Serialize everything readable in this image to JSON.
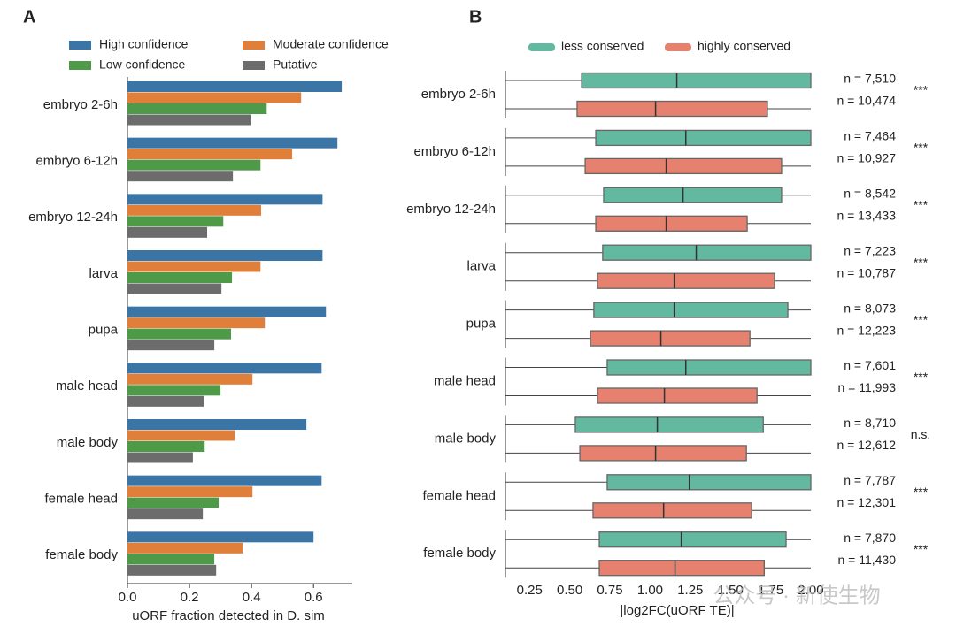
{
  "chart_data": [
    {
      "type": "bar",
      "title": "A",
      "categories": [
        "embryo 2-6h",
        "embryo 6-12h",
        "embryo 12-24h",
        "larva",
        "pupa",
        "male head",
        "male body",
        "female head",
        "female body"
      ],
      "series": [
        {
          "name": "High confidence",
          "color": "#3a75a6",
          "values": [
            0.691,
            0.677,
            0.629,
            0.629,
            0.64,
            0.626,
            0.577,
            0.626,
            0.6
          ]
        },
        {
          "name": "Moderate confidence",
          "color": "#e07f3a",
          "values": [
            0.56,
            0.531,
            0.431,
            0.429,
            0.443,
            0.403,
            0.346,
            0.403,
            0.371
          ]
        },
        {
          "name": "Low confidence",
          "color": "#4f9a48",
          "values": [
            0.449,
            0.429,
            0.309,
            0.337,
            0.334,
            0.3,
            0.249,
            0.294,
            0.28
          ]
        },
        {
          "name": "Putative",
          "color": "#6c6c6c",
          "values": [
            0.397,
            0.34,
            0.257,
            0.303,
            0.28,
            0.246,
            0.211,
            0.243,
            0.286
          ]
        }
      ],
      "xlabel": "uORF fraction detected in D. sim",
      "xlim": [
        0,
        0.725
      ],
      "xticks": [
        {
          "value": 0,
          "label": "0.0"
        },
        0.2,
        0.4,
        0.6
      ]
    },
    {
      "type": "box",
      "title": "B",
      "categories": [
        "embryo 2-6h",
        "embryo 6-12h",
        "embryo 12-24h",
        "larva",
        "pupa",
        "male head",
        "male body",
        "female head",
        "female body"
      ],
      "series": [
        {
          "name": "less conserved",
          "color": "#63b8a0",
          "whisker_low": [
            0.1,
            0.1,
            0.1,
            0.1,
            0.1,
            0.1,
            0.1,
            0.1,
            0.1
          ],
          "q1": [
            0.574,
            0.662,
            0.711,
            0.705,
            0.65,
            0.733,
            0.535,
            0.733,
            0.684
          ],
          "median": [
            1.166,
            1.222,
            1.205,
            1.287,
            1.15,
            1.222,
            1.045,
            1.244,
            1.194
          ],
          "q3": [
            2.0,
            2.0,
            1.818,
            2.0,
            1.857,
            2.0,
            1.704,
            2.0,
            1.846
          ],
          "whisker_high": [
            2.0,
            2.0,
            2.0,
            2.0,
            2.0,
            2.0,
            2.0,
            2.0,
            2.0
          ],
          "n": [
            {
              "value": 7510,
              "label": "n = 7,510"
            },
            {
              "value": 7464,
              "label": "n = 7,464"
            },
            {
              "value": 8542,
              "label": "n = 8,542"
            },
            {
              "value": 7223,
              "label": "n = 7,223"
            },
            {
              "value": 8073,
              "label": "n = 8,073"
            },
            {
              "value": 7601,
              "label": "n = 7,601"
            },
            {
              "value": 8710,
              "label": "n = 8,710"
            },
            {
              "value": 7787,
              "label": "n = 7,787"
            },
            {
              "value": 7870,
              "label": "n = 7,870"
            }
          ]
        },
        {
          "name": "highly conserved",
          "color": "#e6816f",
          "whisker_low": [
            0.1,
            0.1,
            0.1,
            0.1,
            0.1,
            0.1,
            0.1,
            0.1,
            0.1
          ],
          "q1": [
            0.546,
            0.596,
            0.662,
            0.673,
            0.629,
            0.673,
            0.563,
            0.645,
            0.684
          ],
          "median": [
            1.034,
            1.1,
            1.1,
            1.15,
            1.067,
            1.089,
            1.034,
            1.084,
            1.155
          ],
          "q3": [
            1.73,
            1.818,
            1.604,
            1.774,
            1.621,
            1.665,
            1.599,
            1.632,
            1.71
          ],
          "whisker_high": [
            2.0,
            2.0,
            2.0,
            2.0,
            2.0,
            2.0,
            2.0,
            2.0,
            2.0
          ],
          "n": [
            {
              "value": 10474,
              "label": "n = 10,474"
            },
            {
              "value": 10927,
              "label": "n = 10,927"
            },
            {
              "value": 13433,
              "label": "n = 13,433"
            },
            {
              "value": 10787,
              "label": "n = 10,787"
            },
            {
              "value": 12223,
              "label": "n = 12,223"
            },
            {
              "value": 11993,
              "label": "n = 11,993"
            },
            {
              "value": 12612,
              "label": "n = 12,612"
            },
            {
              "value": 12301,
              "label": "n = 12,301"
            },
            {
              "value": 11430,
              "label": "n = 11,430"
            }
          ]
        }
      ],
      "significance": [
        "***",
        "***",
        "***",
        "***",
        "***",
        "***",
        "n.s.",
        "***",
        "***"
      ],
      "xlabel": "|log2FC(uORF TE)|",
      "xlim": [
        0.1,
        2.0
      ],
      "xticks": [
        0.25,
        {
          "value": 0.5,
          "label": "0.50"
        },
        0.75,
        {
          "value": 1.0,
          "label": "1.00"
        },
        1.25,
        {
          "value": 1.5,
          "label": "1.50"
        },
        1.75,
        {
          "value": 2.0,
          "label": "2.00"
        }
      ],
      "watermark": "公众号 · 新使生物"
    }
  ]
}
